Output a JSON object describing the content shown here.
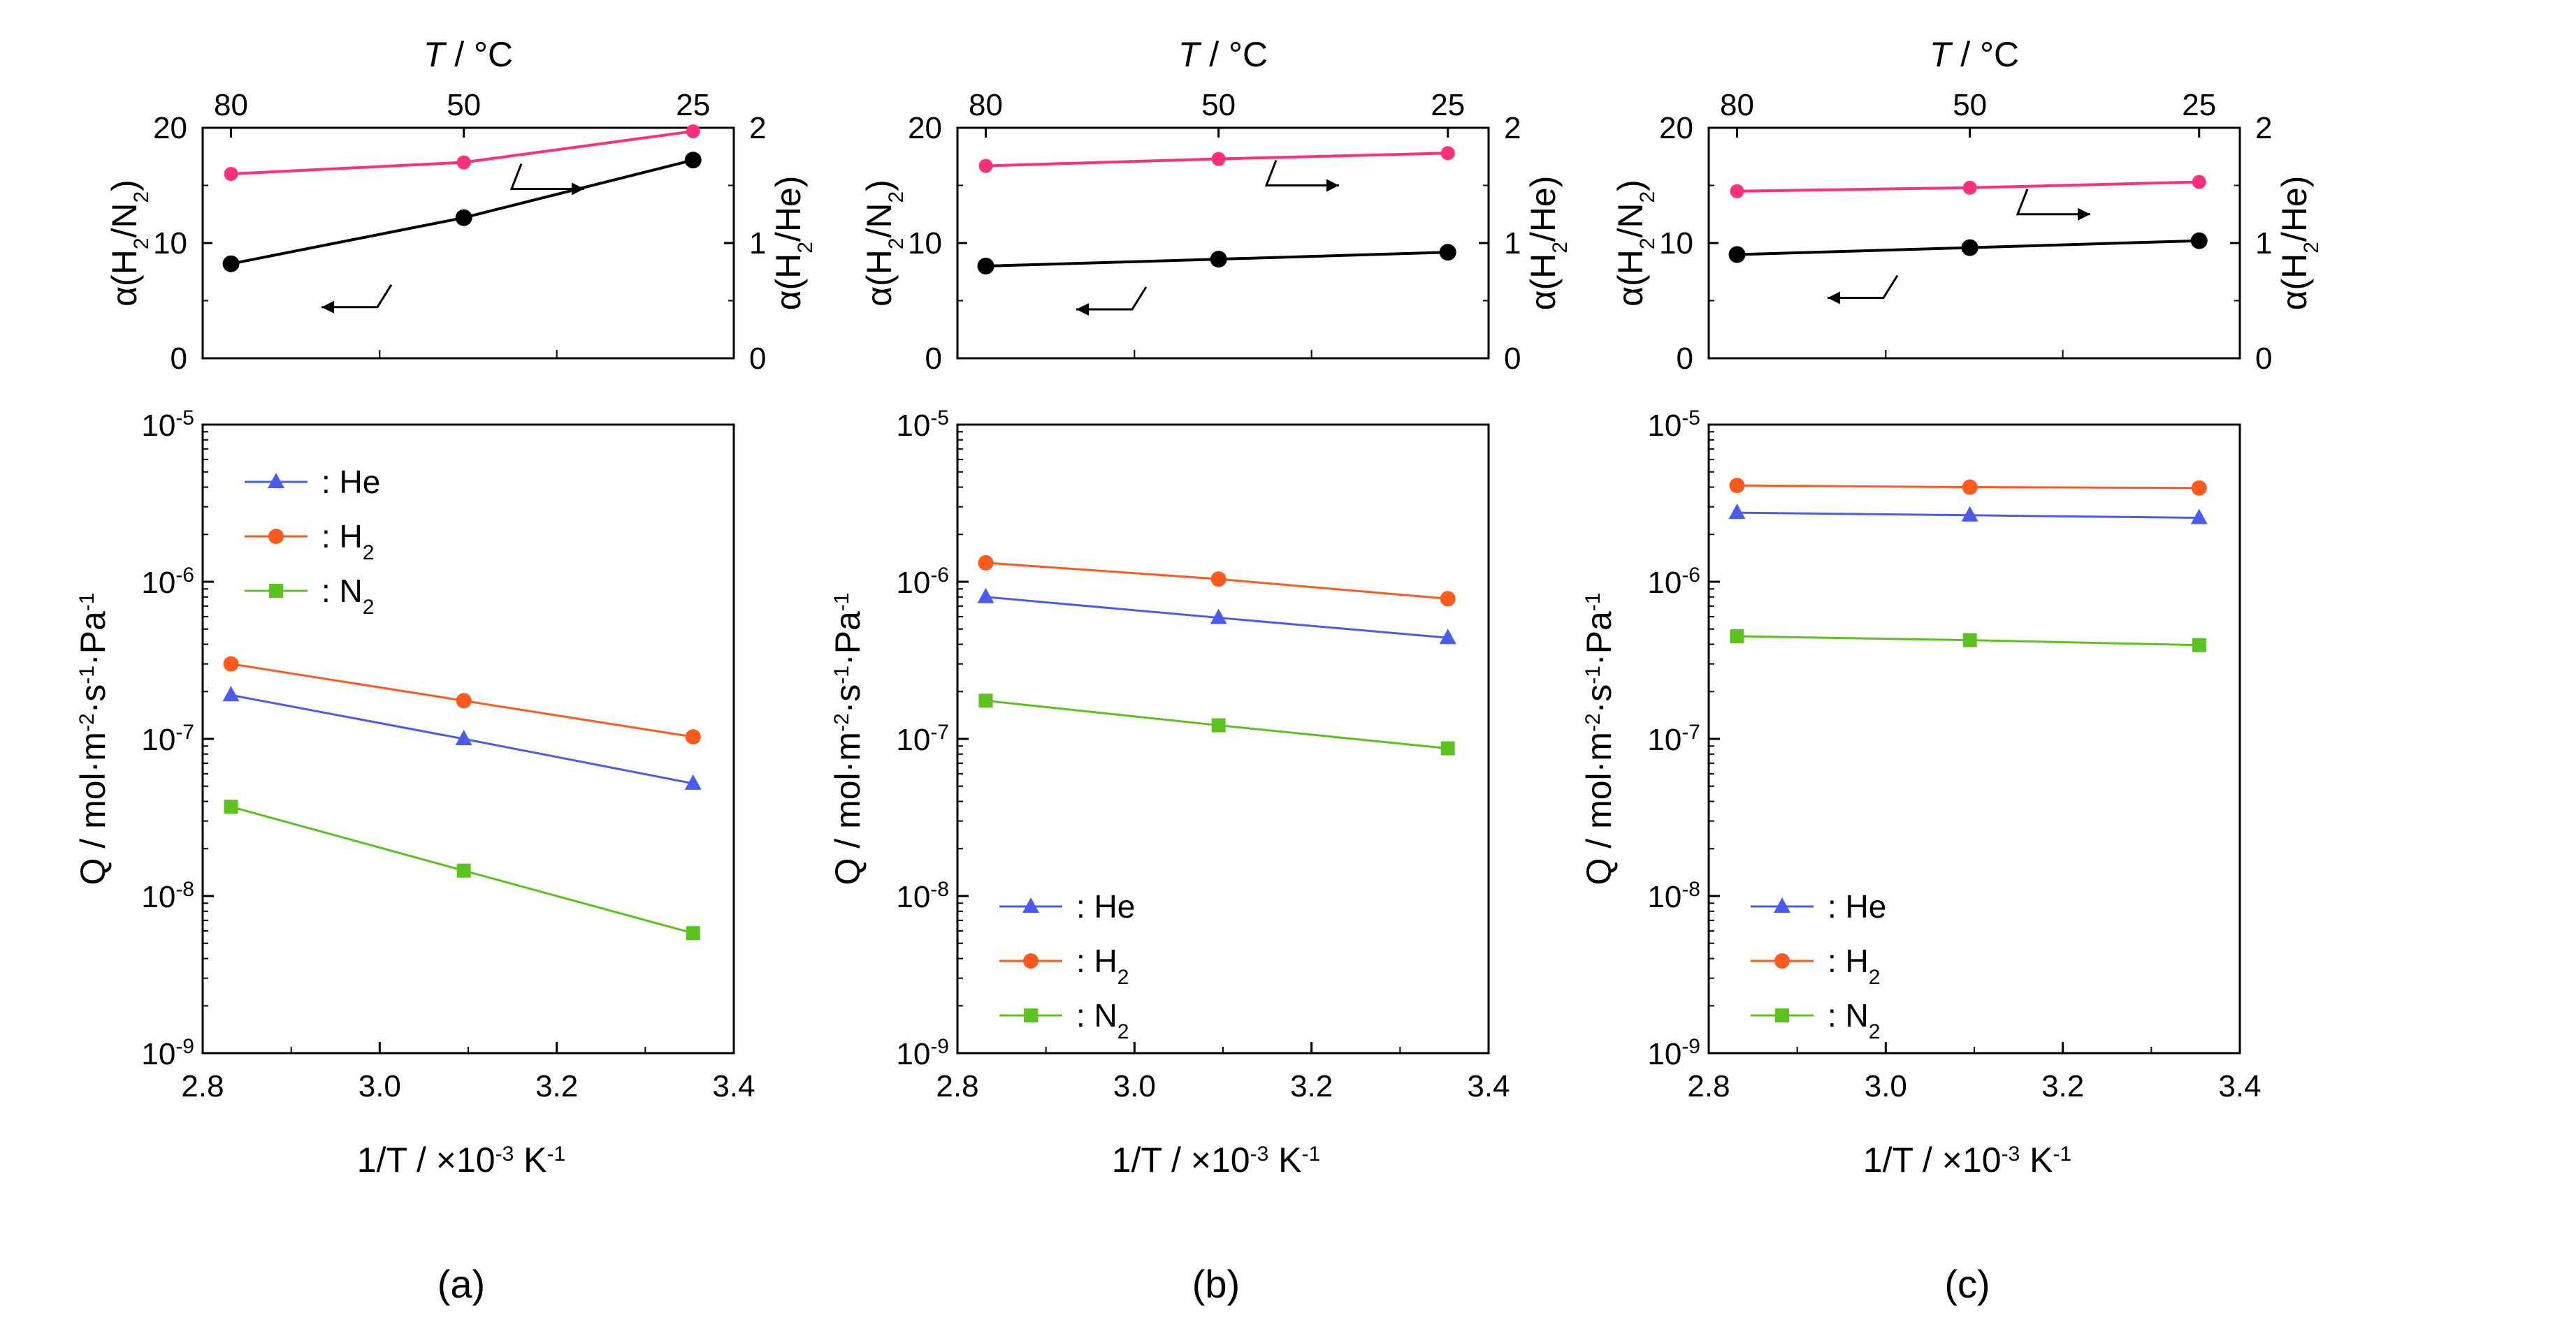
{
  "figure": {
    "top_axis_title": "T / °C",
    "x_axis_title_prefix": "1/T  / ",
    "x_axis_title_unit": "×10",
    "x_axis_title_exp": "-3",
    "x_axis_title_suffix": " K",
    "x_axis_title_suffix_exp": "-1",
    "y_axis_title": "Q / mol·m-2·s-1·Pa-1",
    "y_left_top": "α(H2/N2)",
    "y_right_top": "α(H2/He)"
  },
  "colors": {
    "He": "#4a5cf0",
    "H2": "#ff5a1e",
    "N2": "#5cc21e",
    "ratio_pink": "#ff2f7e",
    "ratio_black": "#000000"
  },
  "chart_data": [
    {
      "panel_label": "(a)",
      "legend_position": "top-left",
      "top": {
        "type": "line",
        "x_top_ticks": [
          "80",
          "50",
          "25"
        ],
        "x_top_tick_positions": [
          2.832,
          3.095,
          3.354
        ],
        "y_left_ticks": [
          "0",
          "10",
          "20"
        ],
        "y_right_ticks": [
          "0",
          "1",
          "2"
        ],
        "ylim_left": [
          0,
          20
        ],
        "ylim_right": [
          0,
          2
        ],
        "series": [
          {
            "name": "α(H2/N2)",
            "axis": "left",
            "color": "black",
            "x": [
              2.832,
              3.095,
              3.354
            ],
            "values": [
              8.2,
              12.2,
              17.2
            ]
          },
          {
            "name": "α(H2/He)",
            "axis": "right",
            "color": "pink",
            "x": [
              2.832,
              3.095,
              3.354
            ],
            "values": [
              1.6,
              1.7,
              1.97
            ]
          }
        ]
      },
      "bottom": {
        "type": "line",
        "yscale": "log",
        "xlim": [
          2.8,
          3.4
        ],
        "ylim": [
          1e-09,
          1e-05
        ],
        "x_ticks": [
          "2.8",
          "3.0",
          "3.2",
          "3.4"
        ],
        "y_tick_exps": [
          "-5",
          "-6",
          "-7",
          "-8",
          "-9"
        ],
        "series": [
          {
            "name": "He",
            "legend": ": He",
            "marker": "triangle",
            "x": [
              2.832,
              3.095,
              3.354
            ],
            "values": [
              1.9e-07,
              1e-07,
              5.2e-08
            ]
          },
          {
            "name": "H2",
            "legend": ": H2",
            "marker": "circle",
            "x": [
              2.832,
              3.095,
              3.354
            ],
            "values": [
              3e-07,
              1.75e-07,
              1.03e-07
            ]
          },
          {
            "name": "N2",
            "legend": ": N2",
            "marker": "square",
            "x": [
              2.832,
              3.095,
              3.354
            ],
            "values": [
              3.7e-08,
              1.45e-08,
              5.8e-09
            ]
          }
        ]
      }
    },
    {
      "panel_label": "(b)",
      "legend_position": "bottom-left",
      "top": {
        "type": "line",
        "x_top_ticks": [
          "80",
          "50",
          "25"
        ],
        "x_top_tick_positions": [
          2.832,
          3.095,
          3.354
        ],
        "y_left_ticks": [
          "0",
          "10",
          "20"
        ],
        "y_right_ticks": [
          "0",
          "1",
          "2"
        ],
        "ylim_left": [
          0,
          20
        ],
        "ylim_right": [
          0,
          2
        ],
        "series": [
          {
            "name": "α(H2/N2)",
            "axis": "left",
            "color": "black",
            "x": [
              2.832,
              3.095,
              3.354
            ],
            "values": [
              8.0,
              8.6,
              9.2
            ]
          },
          {
            "name": "α(H2/He)",
            "axis": "right",
            "color": "pink",
            "x": [
              2.832,
              3.095,
              3.354
            ],
            "values": [
              1.67,
              1.73,
              1.78
            ]
          }
        ]
      },
      "bottom": {
        "type": "line",
        "yscale": "log",
        "xlim": [
          2.8,
          3.4
        ],
        "ylim": [
          1e-09,
          1e-05
        ],
        "x_ticks": [
          "2.8",
          "3.0",
          "3.2",
          "3.4"
        ],
        "y_tick_exps": [
          "-5",
          "-6",
          "-7",
          "-8",
          "-9"
        ],
        "series": [
          {
            "name": "He",
            "legend": ": He",
            "marker": "triangle",
            "x": [
              2.832,
              3.095,
              3.354
            ],
            "values": [
              8e-07,
              5.9e-07,
              4.4e-07
            ]
          },
          {
            "name": "H2",
            "legend": ": H2",
            "marker": "circle",
            "x": [
              2.832,
              3.095,
              3.354
            ],
            "values": [
              1.32e-06,
              1.04e-06,
              7.8e-07
            ]
          },
          {
            "name": "N2",
            "legend": ": N2",
            "marker": "square",
            "x": [
              2.832,
              3.095,
              3.354
            ],
            "values": [
              1.75e-07,
              1.22e-07,
              8.7e-08
            ]
          }
        ]
      }
    },
    {
      "panel_label": "(c)",
      "legend_position": "bottom-left",
      "top": {
        "type": "line",
        "x_top_ticks": [
          "80",
          "50",
          "25"
        ],
        "x_top_tick_positions": [
          2.832,
          3.095,
          3.354
        ],
        "y_left_ticks": [
          "0",
          "10",
          "20"
        ],
        "y_right_ticks": [
          "0",
          "1",
          "2"
        ],
        "ylim_left": [
          0,
          20
        ],
        "ylim_right": [
          0,
          2
        ],
        "series": [
          {
            "name": "α(H2/N2)",
            "axis": "left",
            "color": "black",
            "x": [
              2.832,
              3.095,
              3.354
            ],
            "values": [
              9.0,
              9.6,
              10.2
            ]
          },
          {
            "name": "α(H2/He)",
            "axis": "right",
            "color": "pink",
            "x": [
              2.832,
              3.095,
              3.354
            ],
            "values": [
              1.45,
              1.48,
              1.53
            ]
          }
        ]
      },
      "bottom": {
        "type": "line",
        "yscale": "log",
        "xlim": [
          2.8,
          3.4
        ],
        "ylim": [
          1e-09,
          1e-05
        ],
        "x_ticks": [
          "2.8",
          "3.0",
          "3.2",
          "3.4"
        ],
        "y_tick_exps": [
          "-5",
          "-6",
          "-7",
          "-8",
          "-9"
        ],
        "series": [
          {
            "name": "He",
            "legend": ": He",
            "marker": "triangle",
            "x": [
              2.832,
              3.095,
              3.354
            ],
            "values": [
              2.75e-06,
              2.65e-06,
              2.55e-06
            ]
          },
          {
            "name": "H2",
            "legend": ": H2",
            "marker": "circle",
            "x": [
              2.832,
              3.095,
              3.354
            ],
            "values": [
              4.1e-06,
              4e-06,
              3.95e-06
            ]
          },
          {
            "name": "N2",
            "legend": ": N2",
            "marker": "square",
            "x": [
              2.832,
              3.095,
              3.354
            ],
            "values": [
              4.5e-07,
              4.25e-07,
              3.95e-07
            ]
          }
        ]
      }
    }
  ]
}
